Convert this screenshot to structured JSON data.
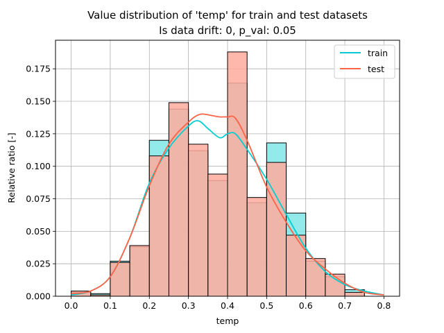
{
  "chart_data": {
    "type": "bar",
    "title": "Value distribution of 'temp' for train and test datasets",
    "subtitle": "Is data drift: 0, p_val: 0.05",
    "xlabel": "temp",
    "ylabel": "Relative ratio [-]",
    "xlim": [
      -0.04,
      0.84
    ],
    "ylim": [
      0,
      0.197
    ],
    "xticks": [
      0.0,
      0.1,
      0.2,
      0.3,
      0.4,
      0.5,
      0.6,
      0.7,
      0.8
    ],
    "xtick_labels": [
      "0.0",
      "0.1",
      "0.2",
      "0.3",
      "0.4",
      "0.5",
      "0.6",
      "0.7",
      "0.8"
    ],
    "yticks": [
      0.0,
      0.025,
      0.05,
      0.075,
      0.1,
      0.125,
      0.15,
      0.175
    ],
    "ytick_labels": [
      "0.000",
      "0.025",
      "0.050",
      "0.075",
      "0.100",
      "0.125",
      "0.150",
      "0.175"
    ],
    "grid": true,
    "legend_position": "top-right",
    "bin_edges": [
      0.0,
      0.05,
      0.1,
      0.15,
      0.2,
      0.25,
      0.3,
      0.35,
      0.4,
      0.45,
      0.5,
      0.55,
      0.6,
      0.65,
      0.7,
      0.75
    ],
    "series": [
      {
        "name": "train",
        "color": "#00CED1",
        "fill": "#7FE6E8",
        "values": [
          0.003,
          0.002,
          0.027,
          0.038,
          0.12,
          0.144,
          0.112,
          0.089,
          0.164,
          0.072,
          0.118,
          0.064,
          0.027,
          0.015,
          0.005
        ],
        "kde_x": [
          0.0,
          0.05,
          0.1,
          0.15,
          0.2,
          0.25,
          0.3,
          0.325,
          0.35,
          0.38,
          0.4,
          0.42,
          0.45,
          0.5,
          0.55,
          0.6,
          0.65,
          0.7,
          0.75,
          0.8
        ],
        "kde_y": [
          0.001,
          0.004,
          0.015,
          0.045,
          0.087,
          0.114,
          0.131,
          0.135,
          0.129,
          0.122,
          0.125,
          0.125,
          0.113,
          0.09,
          0.063,
          0.037,
          0.019,
          0.009,
          0.004,
          0.001
        ]
      },
      {
        "name": "test",
        "color": "#FF6347",
        "fill": "#FFAB9C",
        "values": [
          0.004,
          0.001,
          0.026,
          0.039,
          0.108,
          0.149,
          0.117,
          0.094,
          0.188,
          0.076,
          0.103,
          0.047,
          0.029,
          0.017,
          0.003
        ],
        "kde_x": [
          0.0,
          0.05,
          0.1,
          0.15,
          0.2,
          0.25,
          0.3,
          0.33,
          0.36,
          0.38,
          0.4,
          0.42,
          0.45,
          0.5,
          0.55,
          0.6,
          0.65,
          0.7,
          0.75,
          0.8
        ],
        "kde_y": [
          0.002,
          0.004,
          0.015,
          0.045,
          0.085,
          0.117,
          0.134,
          0.14,
          0.139,
          0.138,
          0.138,
          0.137,
          0.12,
          0.084,
          0.057,
          0.035,
          0.021,
          0.01,
          0.003,
          0.001
        ]
      }
    ]
  }
}
